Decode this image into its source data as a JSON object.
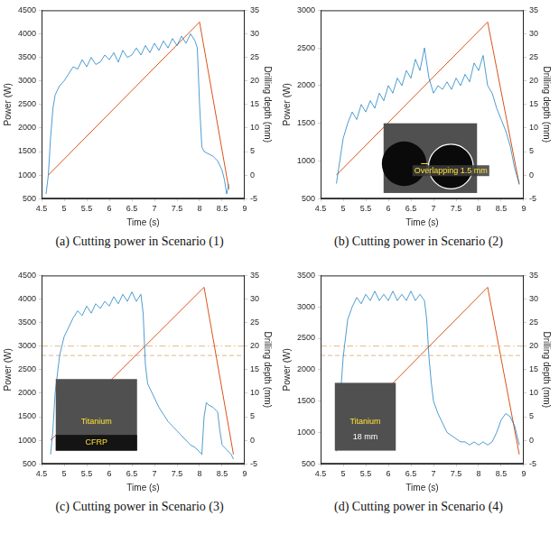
{
  "chart_data": [
    {
      "type": "line",
      "caption": "(a) Cutting power in Scenario (1)",
      "x_label": "Time (s)",
      "y_label": "Power (W)",
      "y2_label": "Drilling depth (mm)",
      "xlim": [
        4.5,
        9
      ],
      "xticks": [
        4.5,
        5,
        5.5,
        6,
        6.5,
        7,
        7.5,
        8,
        8.5,
        9
      ],
      "ylim": [
        500,
        4500
      ],
      "yticks": [
        500,
        1000,
        1500,
        2000,
        2500,
        3000,
        3500,
        4000,
        4500
      ],
      "y2lim": [
        -5,
        35
      ],
      "y2ticks": [
        -5,
        0,
        5,
        10,
        15,
        20,
        25,
        30,
        35
      ],
      "grid": false,
      "series": [
        {
          "color": "#0072BD",
          "x": [
            4.6,
            4.65,
            4.7,
            4.75,
            4.8,
            4.9,
            5.0,
            5.1,
            5.2,
            5.3,
            5.4,
            5.5,
            5.6,
            5.7,
            5.8,
            5.9,
            6.0,
            6.1,
            6.2,
            6.3,
            6.4,
            6.5,
            6.6,
            6.7,
            6.8,
            6.9,
            7.0,
            7.1,
            7.2,
            7.3,
            7.4,
            7.5,
            7.6,
            7.7,
            7.8,
            7.9,
            7.95,
            8.0,
            8.05,
            8.1,
            8.2,
            8.3,
            8.4,
            8.5,
            8.55,
            8.6,
            8.65
          ],
          "values": [
            600,
            1000,
            1800,
            2400,
            2700,
            2900,
            3000,
            3150,
            3300,
            3250,
            3450,
            3300,
            3500,
            3350,
            3400,
            3550,
            3450,
            3600,
            3400,
            3650,
            3500,
            3550,
            3700,
            3550,
            3750,
            3600,
            3800,
            3650,
            3850,
            3700,
            3900,
            3750,
            3950,
            3800,
            4000,
            3850,
            3700,
            2500,
            1600,
            1500,
            1450,
            1400,
            1300,
            1100,
            900,
            600,
            800
          ]
        },
        {
          "color": "#D95319",
          "axis": "y2",
          "x": [
            4.65,
            8.0,
            8.65
          ],
          "values": [
            0,
            32.5,
            -3
          ]
        }
      ]
    },
    {
      "type": "line",
      "caption": "(b) Cutting power in Scenario (2)",
      "x_label": "Time (s)",
      "y_label": "Power (W)",
      "y2_label": "Drilling depth (mm)",
      "xlim": [
        4.5,
        9
      ],
      "xticks": [
        4.5,
        5,
        5.5,
        6,
        6.5,
        7,
        7.5,
        8,
        8.5,
        9
      ],
      "ylim": [
        500,
        3000
      ],
      "yticks": [
        500,
        1000,
        1500,
        2000,
        2500,
        3000
      ],
      "y2lim": [
        -5,
        35
      ],
      "y2ticks": [
        -5,
        0,
        5,
        10,
        15,
        20,
        25,
        30,
        35
      ],
      "grid": false,
      "annotations": [
        "Overlapping 1.5 mm"
      ],
      "series": [
        {
          "color": "#0072BD",
          "x": [
            4.85,
            4.9,
            5.0,
            5.1,
            5.2,
            5.3,
            5.4,
            5.5,
            5.6,
            5.7,
            5.8,
            5.9,
            6.0,
            6.1,
            6.2,
            6.3,
            6.4,
            6.5,
            6.6,
            6.7,
            6.8,
            6.9,
            7.0,
            7.1,
            7.2,
            7.3,
            7.4,
            7.5,
            7.6,
            7.7,
            7.8,
            7.9,
            8.0,
            8.1,
            8.2,
            8.3,
            8.4,
            8.5,
            8.6,
            8.7,
            8.8,
            8.9
          ],
          "values": [
            700,
            900,
            1300,
            1500,
            1650,
            1550,
            1750,
            1650,
            1800,
            1700,
            1900,
            1800,
            2000,
            1900,
            2100,
            2000,
            2200,
            2100,
            2350,
            2200,
            2500,
            2100,
            1900,
            2000,
            1950,
            2050,
            1950,
            2100,
            2000,
            2150,
            2050,
            2300,
            2200,
            2400,
            2000,
            1900,
            1700,
            1550,
            1400,
            1200,
            900,
            700
          ]
        },
        {
          "color": "#D95319",
          "axis": "y2",
          "x": [
            4.85,
            8.2,
            8.9
          ],
          "values": [
            0,
            32.5,
            -2
          ]
        }
      ]
    },
    {
      "type": "line",
      "caption": "(c) Cutting power in Scenario (3)",
      "x_label": "Time (s)",
      "y_label": "Power (W)",
      "y2_label": "Drilling depth (mm)",
      "xlim": [
        4.5,
        9
      ],
      "xticks": [
        4.5,
        5,
        5.5,
        6,
        6.5,
        7,
        7.5,
        8,
        8.5,
        9
      ],
      "ylim": [
        500,
        4500
      ],
      "yticks": [
        500,
        1000,
        1500,
        2000,
        2500,
        3000,
        3500,
        4000,
        4500
      ],
      "y2lim": [
        -5,
        35
      ],
      "y2ticks": [
        -5,
        0,
        5,
        10,
        15,
        20,
        25,
        30,
        35
      ],
      "grid": false,
      "annotations": [
        "Titanium",
        "CFRP"
      ],
      "series": [
        {
          "color": "#0072BD",
          "x": [
            4.7,
            4.75,
            4.8,
            4.9,
            5.0,
            5.1,
            5.2,
            5.3,
            5.4,
            5.5,
            5.6,
            5.7,
            5.8,
            5.9,
            6.0,
            6.1,
            6.2,
            6.3,
            6.4,
            6.5,
            6.6,
            6.7,
            6.75,
            6.8,
            6.85,
            6.9,
            7.0,
            7.1,
            7.2,
            7.3,
            7.4,
            7.5,
            7.6,
            7.7,
            7.8,
            7.9,
            8.0,
            8.05,
            8.1,
            8.15,
            8.2,
            8.3,
            8.4,
            8.45,
            8.5,
            8.6,
            8.7,
            8.75
          ],
          "values": [
            700,
            1200,
            2000,
            2800,
            3200,
            3400,
            3600,
            3750,
            3650,
            3850,
            3700,
            3900,
            3800,
            3950,
            3850,
            4050,
            3900,
            4100,
            3950,
            4150,
            3950,
            4100,
            3700,
            2600,
            2200,
            2100,
            1900,
            1700,
            1550,
            1400,
            1300,
            1200,
            1100,
            1000,
            900,
            850,
            750,
            700,
            1500,
            1800,
            1750,
            1700,
            1600,
            1200,
            900,
            800,
            700,
            600
          ]
        },
        {
          "color": "#D95319",
          "axis": "y2",
          "x": [
            4.7,
            8.1,
            8.75
          ],
          "values": [
            0,
            32.5,
            -3
          ]
        },
        {
          "color": "#E3B98A",
          "axis": "y2",
          "line_style": "dashdot",
          "x": [
            4.5,
            9
          ],
          "values": [
            20,
            20
          ]
        },
        {
          "color": "#E3B98A",
          "axis": "y2",
          "line_style": "dashed",
          "x": [
            4.5,
            9
          ],
          "values": [
            18,
            18
          ]
        }
      ]
    },
    {
      "type": "line",
      "caption": "(d) Cutting power in Scenario (4)",
      "x_label": "Time (s)",
      "y_label": "Power (W)",
      "y2_label": "Drilling depth (mm)",
      "xlim": [
        4.5,
        9
      ],
      "xticks": [
        4.5,
        5,
        5.5,
        6,
        6.5,
        7,
        7.5,
        8,
        8.5,
        9
      ],
      "ylim": [
        500,
        3500
      ],
      "yticks": [
        500,
        1000,
        1500,
        2000,
        2500,
        3000,
        3500
      ],
      "y2lim": [
        -5,
        35
      ],
      "y2ticks": [
        -5,
        0,
        5,
        10,
        15,
        20,
        25,
        30,
        35
      ],
      "grid": false,
      "annotations": [
        "Titanium",
        "18 mm"
      ],
      "series": [
        {
          "color": "#0072BD",
          "x": [
            4.85,
            4.9,
            5.0,
            5.1,
            5.2,
            5.3,
            5.4,
            5.5,
            5.6,
            5.7,
            5.8,
            5.9,
            6.0,
            6.1,
            6.2,
            6.3,
            6.4,
            6.5,
            6.6,
            6.7,
            6.8,
            6.85,
            6.9,
            6.95,
            7.0,
            7.1,
            7.2,
            7.3,
            7.4,
            7.5,
            7.6,
            7.7,
            7.8,
            7.9,
            8.0,
            8.1,
            8.2,
            8.3,
            8.4,
            8.5,
            8.6,
            8.7,
            8.8,
            8.9
          ],
          "values": [
            700,
            1200,
            2200,
            2800,
            3000,
            3150,
            3050,
            3200,
            3100,
            3250,
            3100,
            3200,
            3100,
            3250,
            3100,
            3200,
            3100,
            3250,
            3100,
            3200,
            3100,
            2800,
            2200,
            1800,
            1500,
            1300,
            1150,
            1000,
            950,
            900,
            850,
            850,
            800,
            850,
            800,
            850,
            800,
            850,
            1000,
            1200,
            1300,
            1250,
            1100,
            800
          ]
        },
        {
          "color": "#D95319",
          "axis": "y2",
          "x": [
            4.85,
            8.2,
            8.9
          ],
          "values": [
            0,
            32.5,
            -3
          ]
        },
        {
          "color": "#E3B98A",
          "axis": "y2",
          "line_style": "dashdot",
          "x": [
            4.5,
            9
          ],
          "values": [
            20,
            20
          ]
        },
        {
          "color": "#E3B98A",
          "axis": "y2",
          "line_style": "dashed",
          "x": [
            4.5,
            9
          ],
          "values": [
            18,
            18
          ]
        }
      ]
    }
  ]
}
